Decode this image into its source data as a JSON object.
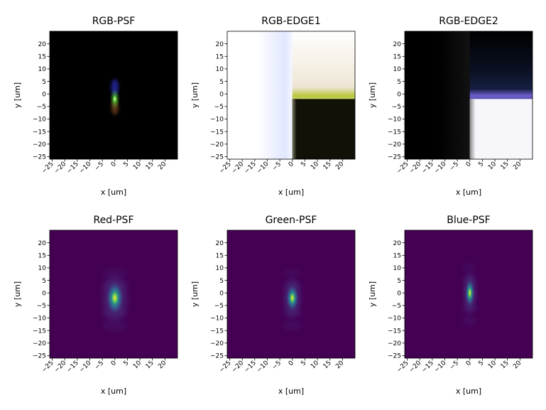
{
  "chart_data": [
    {
      "type": "heatmap",
      "title": "RGB-PSF",
      "xlabel": "x [um]",
      "ylabel": "y [um]",
      "xlim": [
        -26,
        25
      ],
      "ylim": [
        -26,
        25
      ],
      "xticks": [
        -25,
        -20,
        -15,
        -10,
        -5,
        0,
        5,
        10,
        15,
        20
      ],
      "yticks": [
        20,
        15,
        10,
        5,
        0,
        -5,
        -10,
        -15,
        -20,
        -25
      ],
      "content": "rgb point spread function",
      "peak": [
        0,
        -2
      ],
      "background": "#000000",
      "colors": {
        "core": "#fffbd0",
        "halo_top": "#3a3cff",
        "halo_mid": "#5fd63a",
        "halo_bottom": "#a0602a"
      }
    },
    {
      "type": "heatmap",
      "title": "RGB-EDGE1",
      "xlabel": "x [um]",
      "ylabel": "y [um]",
      "xlim": [
        -26,
        25
      ],
      "ylim": [
        -26,
        25
      ],
      "xticks": [
        -25,
        -20,
        -15,
        -10,
        -5,
        0,
        5,
        10,
        15,
        20
      ],
      "yticks": [
        20,
        15,
        10,
        5,
        0,
        -5,
        -10,
        -15,
        -20,
        -25
      ],
      "content": "edge response",
      "edge_x": 0,
      "edge_y": -2,
      "colors": {
        "background": "#ffffff",
        "edge_blue": "#c8d4ff",
        "band": "#b8c83a",
        "upper_tint": "#e8dcc4",
        "dark_block": "#111108"
      }
    },
    {
      "type": "heatmap",
      "title": "RGB-EDGE2",
      "xlabel": "x [um]",
      "ylabel": "y [um]",
      "xlim": [
        -26,
        25
      ],
      "ylim": [
        -26,
        25
      ],
      "xticks": [
        -25,
        -20,
        -15,
        -10,
        -5,
        0,
        5,
        10,
        15,
        20
      ],
      "yticks": [
        20,
        15,
        10,
        5,
        0,
        -5,
        -10,
        -15,
        -20,
        -25
      ],
      "content": "edge response",
      "edge_x": 0,
      "edge_y": -2,
      "colors": {
        "background": "#000000",
        "band": "#6f5fcf",
        "upper_tint": "#1a2650",
        "light_block": "#f6f6fb"
      }
    },
    {
      "type": "heatmap",
      "title": "Red-PSF",
      "xlabel": "x [um]",
      "ylabel": "y [um]",
      "xlim": [
        -26,
        25
      ],
      "ylim": [
        -26,
        25
      ],
      "xticks": [
        -25,
        -20,
        -15,
        -10,
        -5,
        0,
        5,
        10,
        15,
        20
      ],
      "yticks": [
        20,
        15,
        10,
        5,
        0,
        -5,
        -10,
        -15,
        -20,
        -25
      ],
      "content": "single-channel point spread function",
      "colormap": "viridis",
      "peak": [
        0,
        -2
      ],
      "spread": [
        2.2,
        4.2
      ]
    },
    {
      "type": "heatmap",
      "title": "Green-PSF",
      "xlabel": "x [um]",
      "ylabel": "y [um]",
      "xlim": [
        -26,
        25
      ],
      "ylim": [
        -26,
        25
      ],
      "xticks": [
        -25,
        -20,
        -15,
        -10,
        -5,
        0,
        5,
        10,
        15,
        20
      ],
      "yticks": [
        20,
        15,
        10,
        5,
        0,
        -5,
        -10,
        -15,
        -20,
        -25
      ],
      "content": "single-channel point spread function",
      "colormap": "viridis",
      "peak": [
        0,
        -2
      ],
      "spread": [
        1.6,
        3.4
      ]
    },
    {
      "type": "heatmap",
      "title": "Blue-PSF",
      "xlabel": "x [um]",
      "ylabel": "y [um]",
      "xlim": [
        -26,
        25
      ],
      "ylim": [
        -26,
        25
      ],
      "xticks": [
        -25,
        -20,
        -15,
        -10,
        -5,
        0,
        5,
        10,
        15,
        20
      ],
      "yticks": [
        20,
        15,
        10,
        5,
        0,
        -5,
        -10,
        -15,
        -20,
        -25
      ],
      "content": "single-channel point spread function",
      "colormap": "viridis",
      "peak": [
        0,
        0
      ],
      "spread": [
        1.2,
        3.6
      ]
    }
  ]
}
